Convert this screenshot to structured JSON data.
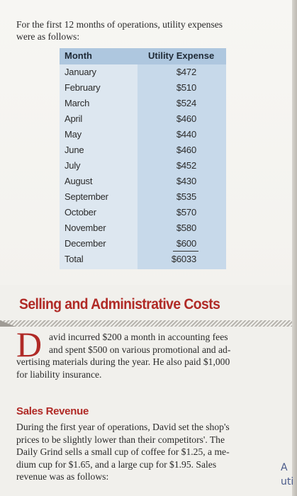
{
  "intro": {
    "line1": "For the first 12 months of operations, utility expenses",
    "line2": "were as follows:"
  },
  "table": {
    "headers": {
      "month": "Month",
      "expense": "Utility Expense"
    },
    "rows": [
      {
        "month": "January",
        "expense": "$472"
      },
      {
        "month": "February",
        "expense": "$510"
      },
      {
        "month": "March",
        "expense": "$524"
      },
      {
        "month": "April",
        "expense": "$460"
      },
      {
        "month": "May",
        "expense": "$440"
      },
      {
        "month": "June",
        "expense": "$460"
      },
      {
        "month": "July",
        "expense": "$452"
      },
      {
        "month": "August",
        "expense": "$430"
      },
      {
        "month": "September",
        "expense": "$535"
      },
      {
        "month": "October",
        "expense": "$570"
      },
      {
        "month": "November",
        "expense": "$580"
      },
      {
        "month": "December",
        "expense": "$600"
      },
      {
        "month": "Total",
        "expense": "$6033"
      }
    ]
  },
  "section": {
    "title": "Selling and Administrative Costs",
    "dropcap": "D",
    "para1": {
      "line1": "avid incurred $200 a month in accounting fees",
      "line2": "and spent $500 on various promotional and ad-",
      "line3": "vertising materials during the year. He also paid $1,000",
      "line4": "for liability insurance."
    },
    "subhead": "Sales Revenue",
    "para2": {
      "line1": "During the first year of operations, David set the shop's",
      "line2": "prices to be slightly lower than their competitors'. The",
      "line3": "Daily Grind sells a small cup of coffee for $1.25, a me-",
      "line4": "dium cup for $1.65, and a large cup for $1.95. Sales",
      "line5": "revenue was as follows:"
    }
  },
  "margin_note": {
    "line1": "A",
    "line2": "uti"
  }
}
